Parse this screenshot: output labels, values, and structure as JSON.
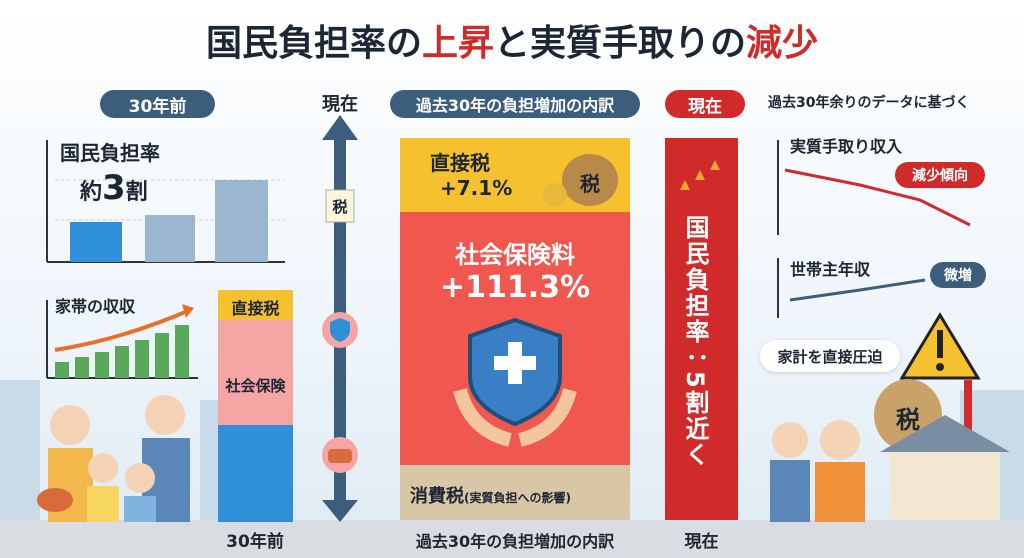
{
  "header": {
    "title_parts": [
      "国民負担率の",
      "上昇",
      "と実質手取りの",
      "減少"
    ]
  },
  "left": {
    "badge": "30年前",
    "burden_card": {
      "label": "国民負担率",
      "value_parts": [
        "約",
        "3",
        "割"
      ]
    },
    "income_card": {
      "label": "家帯の収収"
    },
    "stack_labels": [
      "直接税",
      "社会保険"
    ],
    "bottom_label": "30年前"
  },
  "arrow": {
    "top_label": "現在",
    "icon_text": "税"
  },
  "center": {
    "badge": "過去30年の負担増加の内訳",
    "direct_tax": {
      "label": "直接税",
      "change": "+7.1%",
      "bag_text": "税"
    },
    "social_insurance": {
      "label": "社会保険料",
      "change": "+111.3%"
    },
    "consumption_tax": {
      "label": "消費税",
      "note": "(実質負担への影響)"
    },
    "bottom_label": "過去30年の負担増加の内訳"
  },
  "current": {
    "badge": "現在",
    "vertical_text": "国民負担率：5割近く",
    "bottom_label": "現在"
  },
  "right": {
    "source_note": "過去30年余りのデータに基づく",
    "takehome_card": {
      "label": "実質手取り収入",
      "trend": "減少傾向"
    },
    "income_card": {
      "label": "世帯主年収",
      "trend": "微増"
    },
    "speech": "家計を直接圧迫",
    "bag_text": "税"
  }
}
